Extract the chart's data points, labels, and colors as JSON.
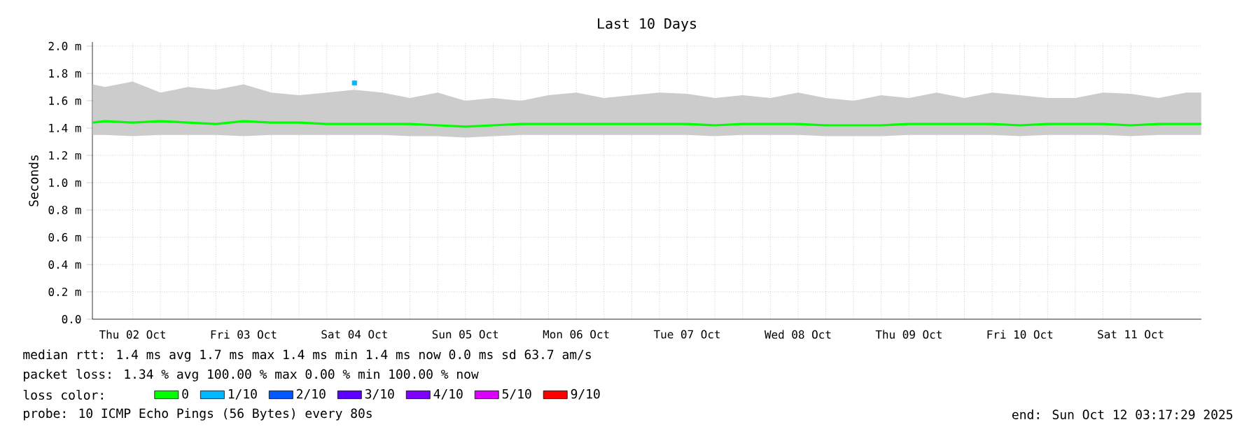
{
  "chart_data": {
    "type": "line",
    "title": "Last 10 Days",
    "ylabel": "Seconds",
    "legend_title": "loss color:",
    "legend": "bottom",
    "grid": true,
    "marker": "none",
    "line_style": "solid",
    "xlim": [
      "2025-10-02T03:17",
      "2025-10-12T03:17"
    ],
    "xticks": [
      {
        "value": "2025-10-02T12:00",
        "label": "Thu 02 Oct"
      },
      {
        "value": "2025-10-03T12:00",
        "label": "Fri 03 Oct"
      },
      {
        "value": "2025-10-04T12:00",
        "label": "Sat 04 Oct"
      },
      {
        "value": "2025-10-05T12:00",
        "label": "Sun 05 Oct"
      },
      {
        "value": "2025-10-06T12:00",
        "label": "Mon 06 Oct"
      },
      {
        "value": "2025-10-07T12:00",
        "label": "Tue 07 Oct"
      },
      {
        "value": "2025-10-08T12:00",
        "label": "Wed 08 Oct"
      },
      {
        "value": "2025-10-09T12:00",
        "label": "Thu 09 Oct"
      },
      {
        "value": "2025-10-10T12:00",
        "label": "Fri 10 Oct"
      },
      {
        "value": "2025-10-11T12:00",
        "label": "Sat 11 Oct"
      }
    ],
    "ylim": [
      0,
      2.03
    ],
    "yticks": [
      {
        "value": 0,
        "label": "0.0"
      },
      {
        "value": 0.2,
        "label": "0.2 m"
      },
      {
        "value": 0.4,
        "label": "0.4 m"
      },
      {
        "value": 0.6,
        "label": "0.6 m"
      },
      {
        "value": 0.8,
        "label": "0.8 m"
      },
      {
        "value": 1.0,
        "label": "1.0 m"
      },
      {
        "value": 1.2,
        "label": "1.2 m"
      },
      {
        "value": 1.4,
        "label": "1.4 m"
      },
      {
        "value": 1.6,
        "label": "1.6 m"
      },
      {
        "value": 1.8,
        "label": "1.8 m"
      },
      {
        "value": 2.0,
        "label": "2.0 m"
      }
    ],
    "x": [
      "2025-10-02T03:20",
      "2025-10-02T06:00",
      "2025-10-02T12:00",
      "2025-10-02T18:00",
      "2025-10-03T00:00",
      "2025-10-03T06:00",
      "2025-10-03T12:00",
      "2025-10-03T18:00",
      "2025-10-04T00:00",
      "2025-10-04T06:00",
      "2025-10-04T12:00",
      "2025-10-04T18:00",
      "2025-10-05T00:00",
      "2025-10-05T06:00",
      "2025-10-05T12:00",
      "2025-10-05T18:00",
      "2025-10-06T00:00",
      "2025-10-06T06:00",
      "2025-10-06T12:00",
      "2025-10-06T18:00",
      "2025-10-07T00:00",
      "2025-10-07T06:00",
      "2025-10-07T12:00",
      "2025-10-07T18:00",
      "2025-10-08T00:00",
      "2025-10-08T06:00",
      "2025-10-08T12:00",
      "2025-10-08T18:00",
      "2025-10-09T00:00",
      "2025-10-09T06:00",
      "2025-10-09T12:00",
      "2025-10-09T18:00",
      "2025-10-10T00:00",
      "2025-10-10T06:00",
      "2025-10-10T12:00",
      "2025-10-10T18:00",
      "2025-10-11T00:00",
      "2025-10-11T06:00",
      "2025-10-11T12:00",
      "2025-10-11T18:00",
      "2025-10-12T00:00",
      "2025-10-12T03:15"
    ],
    "series": [
      {
        "name": "0",
        "color": "#00ff00",
        "values": [
          1.44,
          1.45,
          1.44,
          1.45,
          1.44,
          1.43,
          1.45,
          1.44,
          1.44,
          1.43,
          1.43,
          1.43,
          1.43,
          1.42,
          1.41,
          1.42,
          1.43,
          1.43,
          1.43,
          1.43,
          1.43,
          1.43,
          1.43,
          1.42,
          1.43,
          1.43,
          1.43,
          1.42,
          1.42,
          1.42,
          1.43,
          1.43,
          1.43,
          1.43,
          1.42,
          1.43,
          1.43,
          1.43,
          1.42,
          1.43,
          1.43,
          1.43
        ],
        "lower": [
          1.35,
          1.35,
          1.34,
          1.35,
          1.35,
          1.35,
          1.34,
          1.35,
          1.35,
          1.35,
          1.35,
          1.35,
          1.34,
          1.34,
          1.33,
          1.34,
          1.35,
          1.35,
          1.35,
          1.35,
          1.35,
          1.35,
          1.35,
          1.34,
          1.35,
          1.35,
          1.35,
          1.34,
          1.34,
          1.34,
          1.35,
          1.35,
          1.35,
          1.35,
          1.34,
          1.35,
          1.35,
          1.35,
          1.34,
          1.35,
          1.35,
          1.35
        ],
        "upper": [
          1.72,
          1.7,
          1.74,
          1.66,
          1.7,
          1.68,
          1.72,
          1.66,
          1.64,
          1.66,
          1.68,
          1.66,
          1.62,
          1.66,
          1.6,
          1.62,
          1.6,
          1.64,
          1.66,
          1.62,
          1.64,
          1.66,
          1.65,
          1.62,
          1.64,
          1.62,
          1.66,
          1.62,
          1.6,
          1.64,
          1.62,
          1.66,
          1.62,
          1.66,
          1.64,
          1.62,
          1.62,
          1.66,
          1.65,
          1.62,
          1.66,
          1.66
        ]
      },
      {
        "name": "1/10",
        "color": "#00b8ff",
        "type": "scatter",
        "marker": "square",
        "x": [
          "2025-10-04T12:00"
        ],
        "values": [
          1.73
        ]
      },
      {
        "name": "2/10",
        "color": "#0059ff",
        "values": [
          null,
          null,
          null,
          null,
          null,
          null,
          null,
          null,
          null,
          null,
          null,
          null,
          null,
          null,
          null,
          null,
          null,
          null,
          null,
          null,
          null,
          null,
          null,
          null,
          null,
          null,
          null,
          null,
          null,
          null,
          null,
          null,
          null,
          null,
          null,
          null,
          null,
          null,
          null,
          null,
          null,
          null
        ]
      },
      {
        "name": "3/10",
        "color": "#5e00ff",
        "values": [
          null,
          null,
          null,
          null,
          null,
          null,
          null,
          null,
          null,
          null,
          null,
          null,
          null,
          null,
          null,
          null,
          null,
          null,
          null,
          null,
          null,
          null,
          null,
          null,
          null,
          null,
          null,
          null,
          null,
          null,
          null,
          null,
          null,
          null,
          null,
          null,
          null,
          null,
          null,
          null,
          null,
          null
        ]
      },
      {
        "name": "4/10",
        "color": "#7e00ff",
        "values": [
          null,
          null,
          null,
          null,
          null,
          null,
          null,
          null,
          null,
          null,
          null,
          null,
          null,
          null,
          null,
          null,
          null,
          null,
          null,
          null,
          null,
          null,
          null,
          null,
          null,
          null,
          null,
          null,
          null,
          null,
          null,
          null,
          null,
          null,
          null,
          null,
          null,
          null,
          null,
          null,
          null,
          null
        ]
      },
      {
        "name": "5/10",
        "color": "#dd00ff",
        "values": [
          null,
          null,
          null,
          null,
          null,
          null,
          null,
          null,
          null,
          null,
          null,
          null,
          null,
          null,
          null,
          null,
          null,
          null,
          null,
          null,
          null,
          null,
          null,
          null,
          null,
          null,
          null,
          null,
          null,
          null,
          null,
          null,
          null,
          null,
          null,
          null,
          null,
          null,
          null,
          null,
          null,
          null
        ]
      },
      {
        "name": "9/10",
        "color": "#ff0000",
        "values": [
          null,
          null,
          null,
          null,
          null,
          null,
          null,
          null,
          null,
          null,
          null,
          null,
          null,
          null,
          null,
          null,
          null,
          null,
          null,
          null,
          null,
          null,
          null,
          null,
          null,
          null,
          null,
          null,
          null,
          null,
          null,
          null,
          null,
          null,
          null,
          null,
          null,
          null,
          null,
          null,
          null,
          null
        ]
      }
    ],
    "annotations": [
      "median rtt: 1.4 ms avg 1.7 ms max 1.4 ms min 1.4 ms now 0.0 ms sd 63.7 am/s",
      "packet loss: 1.34 % avg 100.00 % max 0.00 % min 100.00 % now",
      "probe: 10 ICMP Echo Pings (56 Bytes) every 80s",
      "end: Sun Oct 12 03:17:29 2025"
    ]
  }
}
